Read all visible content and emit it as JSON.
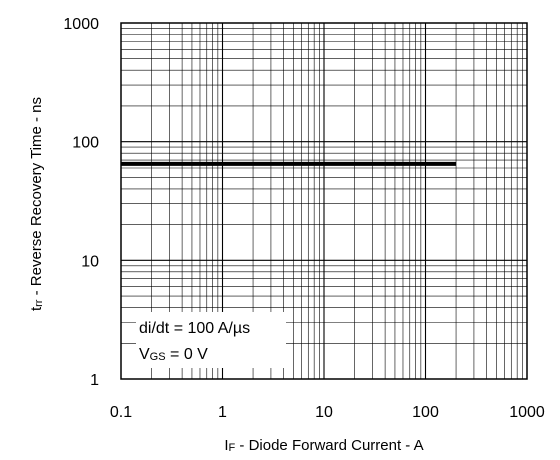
{
  "chart_data": {
    "type": "line",
    "x_scale": "log",
    "y_scale": "log",
    "xlim": [
      0.1,
      1000
    ],
    "ylim": [
      1,
      1000
    ],
    "x_ticks": [
      "0.1",
      "1",
      "10",
      "100",
      "1000"
    ],
    "y_ticks": [
      "1",
      "10",
      "100",
      "1000"
    ],
    "grid": true,
    "series": [
      {
        "x": [
          0.1,
          200
        ],
        "y": [
          65,
          65
        ],
        "color": "#000000"
      }
    ],
    "xlabel": {
      "symbol": "I",
      "subscript": "F",
      "text": " - Diode Forward Current - A"
    },
    "ylabel": {
      "symbol": "t",
      "subscript": "rr",
      "text": " - Reverse Recovery Time - ns"
    },
    "annotations": [
      {
        "text": "di/dt = 100 A/µs"
      },
      {
        "symbol": "V",
        "subscript": "GS",
        "text": " = 0 V"
      }
    ]
  }
}
